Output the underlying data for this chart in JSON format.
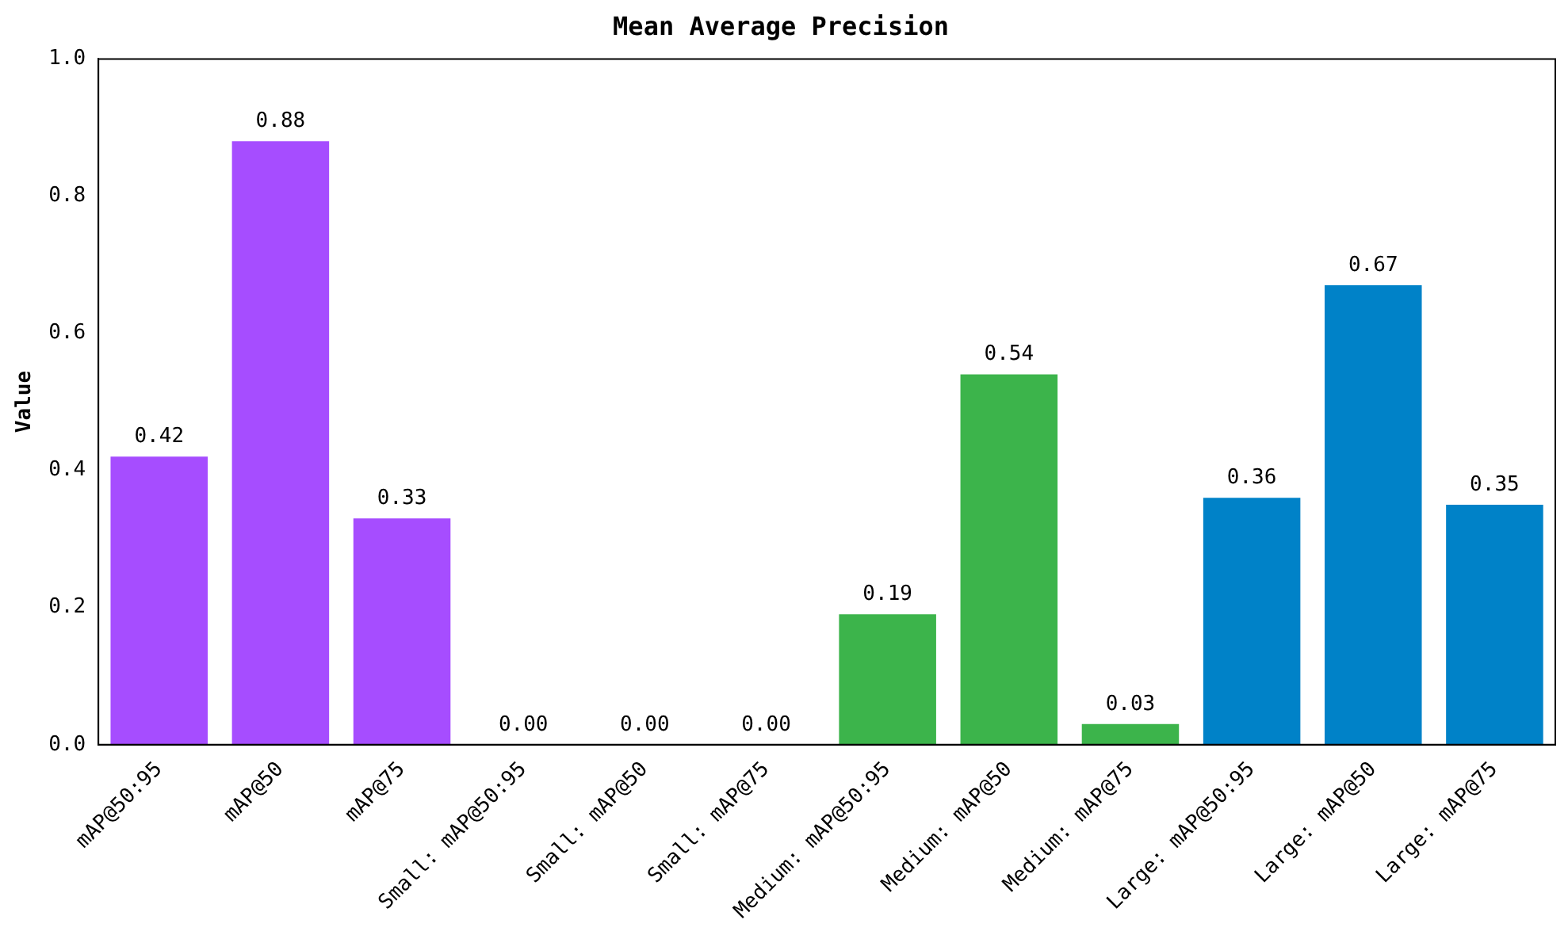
{
  "chart_data": {
    "type": "bar",
    "title": "Mean Average Precision",
    "ylabel": "Value",
    "categories": [
      "mAP@50:95",
      "mAP@50",
      "mAP@75",
      "Small: mAP@50:95",
      "Small: mAP@50",
      "Small: mAP@75",
      "Medium: mAP@50:95",
      "Medium: mAP@50",
      "Medium: mAP@75",
      "Large: mAP@50:95",
      "Large: mAP@50",
      "Large: mAP@75"
    ],
    "values": [
      0.42,
      0.88,
      0.33,
      0,
      0,
      0,
      0.19,
      0.54,
      0.03,
      0.36,
      0.67,
      0.35
    ],
    "value_labels": [
      "0.42",
      "0.88",
      "0.33",
      "0.00",
      "0.00",
      "0.00",
      "0.19",
      "0.54",
      "0.03",
      "0.36",
      "0.67",
      "0.35"
    ],
    "colors": [
      "#a64dff",
      "#a64dff",
      "#a64dff",
      "#999999",
      "#999999",
      "#999999",
      "#3cb44b",
      "#3cb44b",
      "#3cb44b",
      "#0082c8",
      "#0082c8",
      "#0082c8"
    ],
    "ylim": [
      0,
      1
    ],
    "yticks": [
      {
        "value": 0,
        "label": "0.0"
      },
      {
        "value": 0.2,
        "label": "0.2"
      },
      {
        "value": 0.4,
        "label": "0.4"
      },
      {
        "value": 0.6,
        "label": "0.6"
      },
      {
        "value": 0.8,
        "label": "0.8"
      },
      {
        "value": 1,
        "label": "1.0"
      }
    ],
    "grid": false,
    "legend": false
  }
}
